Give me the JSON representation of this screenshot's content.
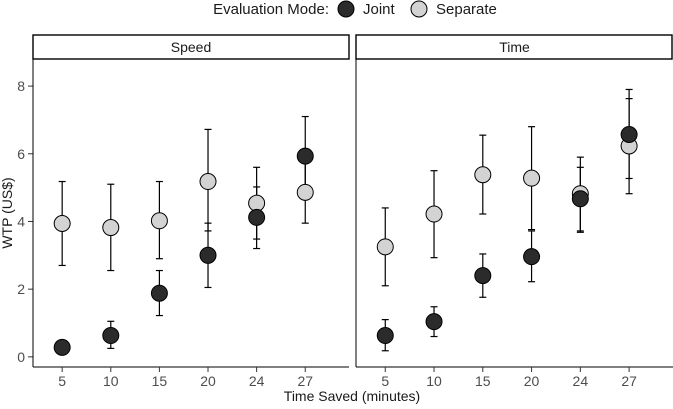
{
  "chart_data": {
    "type": "scatter",
    "legend": {
      "title": "Evaluation Mode:",
      "placement": "top",
      "entries": [
        {
          "name": "Joint",
          "color": "#2b2b2b"
        },
        {
          "name": "Separate",
          "color": "#d3d3d3"
        }
      ]
    },
    "xlabel": "Time Saved (minutes)",
    "ylabel": "WTP (US$)",
    "ylim": [
      -0.3,
      8.8
    ],
    "yticks": [
      0,
      2,
      4,
      6,
      8
    ],
    "categories": [
      "5",
      "10",
      "15",
      "20",
      "24",
      "27"
    ],
    "panels": [
      {
        "title": "Speed",
        "series": [
          {
            "name": "Joint",
            "values": [
              0.28,
              0.63,
              1.88,
              3.0,
              4.12,
              5.93
            ],
            "lower": [
              0.18,
              0.25,
              1.22,
              2.05,
              3.2,
              4.75
            ],
            "upper": [
              0.38,
              1.05,
              2.55,
              3.95,
              5.02,
              7.1
            ]
          },
          {
            "name": "Separate",
            "values": [
              3.94,
              3.82,
              4.02,
              5.18,
              4.54,
              4.86
            ],
            "lower": [
              2.7,
              2.55,
              2.9,
              3.72,
              3.48,
              3.95
            ],
            "upper": [
              5.18,
              5.1,
              5.18,
              6.72,
              5.6,
              5.75
            ]
          }
        ]
      },
      {
        "title": "Time",
        "series": [
          {
            "name": "Joint",
            "values": [
              0.63,
              1.04,
              2.4,
              2.96,
              4.67,
              6.57
            ],
            "lower": [
              0.18,
              0.6,
              1.76,
              2.22,
              3.72,
              5.27
            ],
            "upper": [
              1.1,
              1.48,
              3.04,
              3.72,
              5.6,
              7.9
            ]
          },
          {
            "name": "Separate",
            "values": [
              3.25,
              4.22,
              5.38,
              5.28,
              4.82,
              6.23
            ],
            "lower": [
              2.1,
              2.93,
              4.22,
              3.76,
              3.68,
              4.82
            ],
            "upper": [
              4.4,
              5.5,
              6.55,
              6.8,
              5.9,
              7.63
            ]
          }
        ]
      }
    ]
  }
}
